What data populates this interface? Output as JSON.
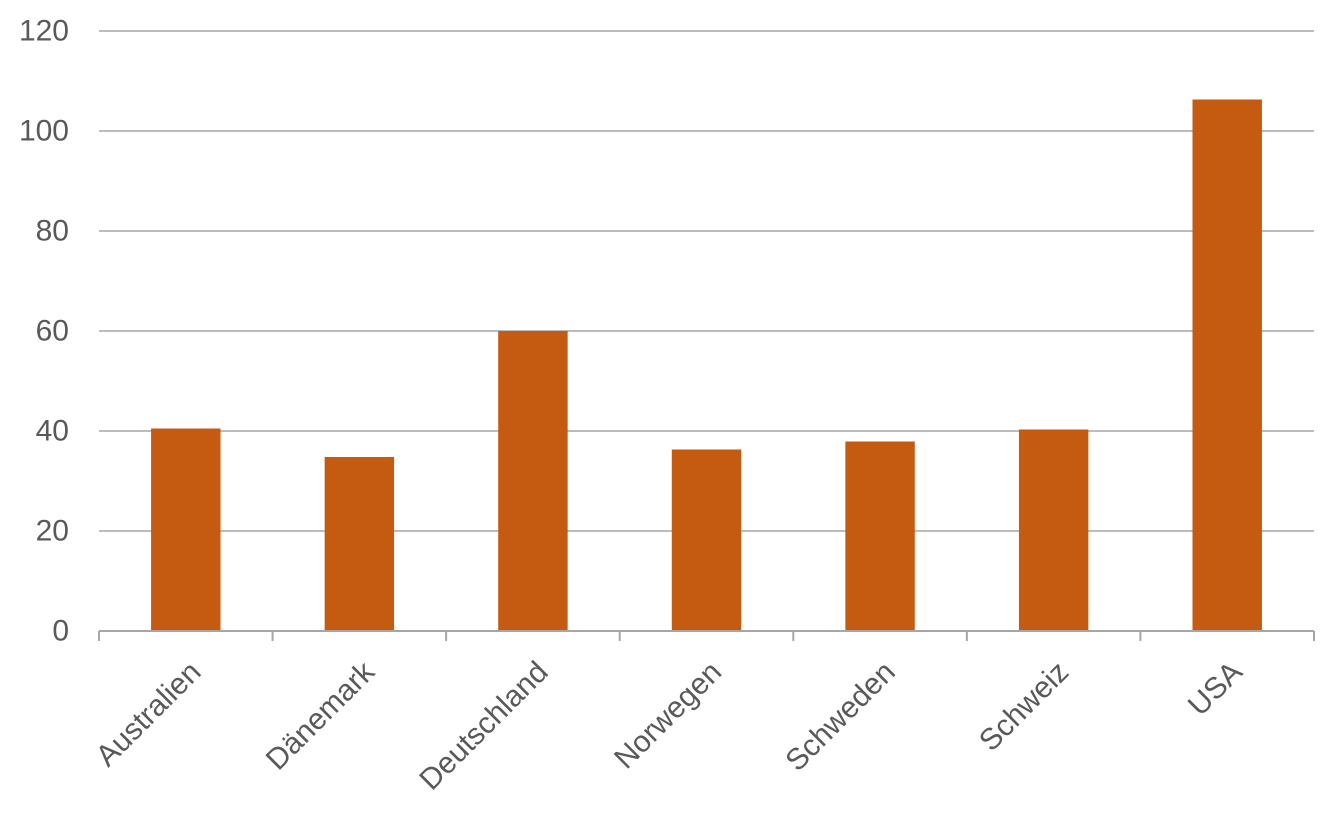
{
  "chart_data": {
    "type": "bar",
    "categories": [
      "Australien",
      "Dänemark",
      "Deutschland",
      "Norwegen",
      "Schweden",
      "Schweiz",
      "USA"
    ],
    "series": [
      {
        "values": [
          40.5,
          34.8,
          60,
          36.3,
          37.9,
          40.3,
          106.3
        ]
      }
    ],
    "ylim": [
      0,
      120
    ],
    "yticks": [
      0,
      20,
      40,
      60,
      80,
      100,
      120
    ],
    "grid": true,
    "legend": "none",
    "bar_color": "#c55a11",
    "gridline_color": "#a6a6a6",
    "tick_label_color": "#595959"
  }
}
